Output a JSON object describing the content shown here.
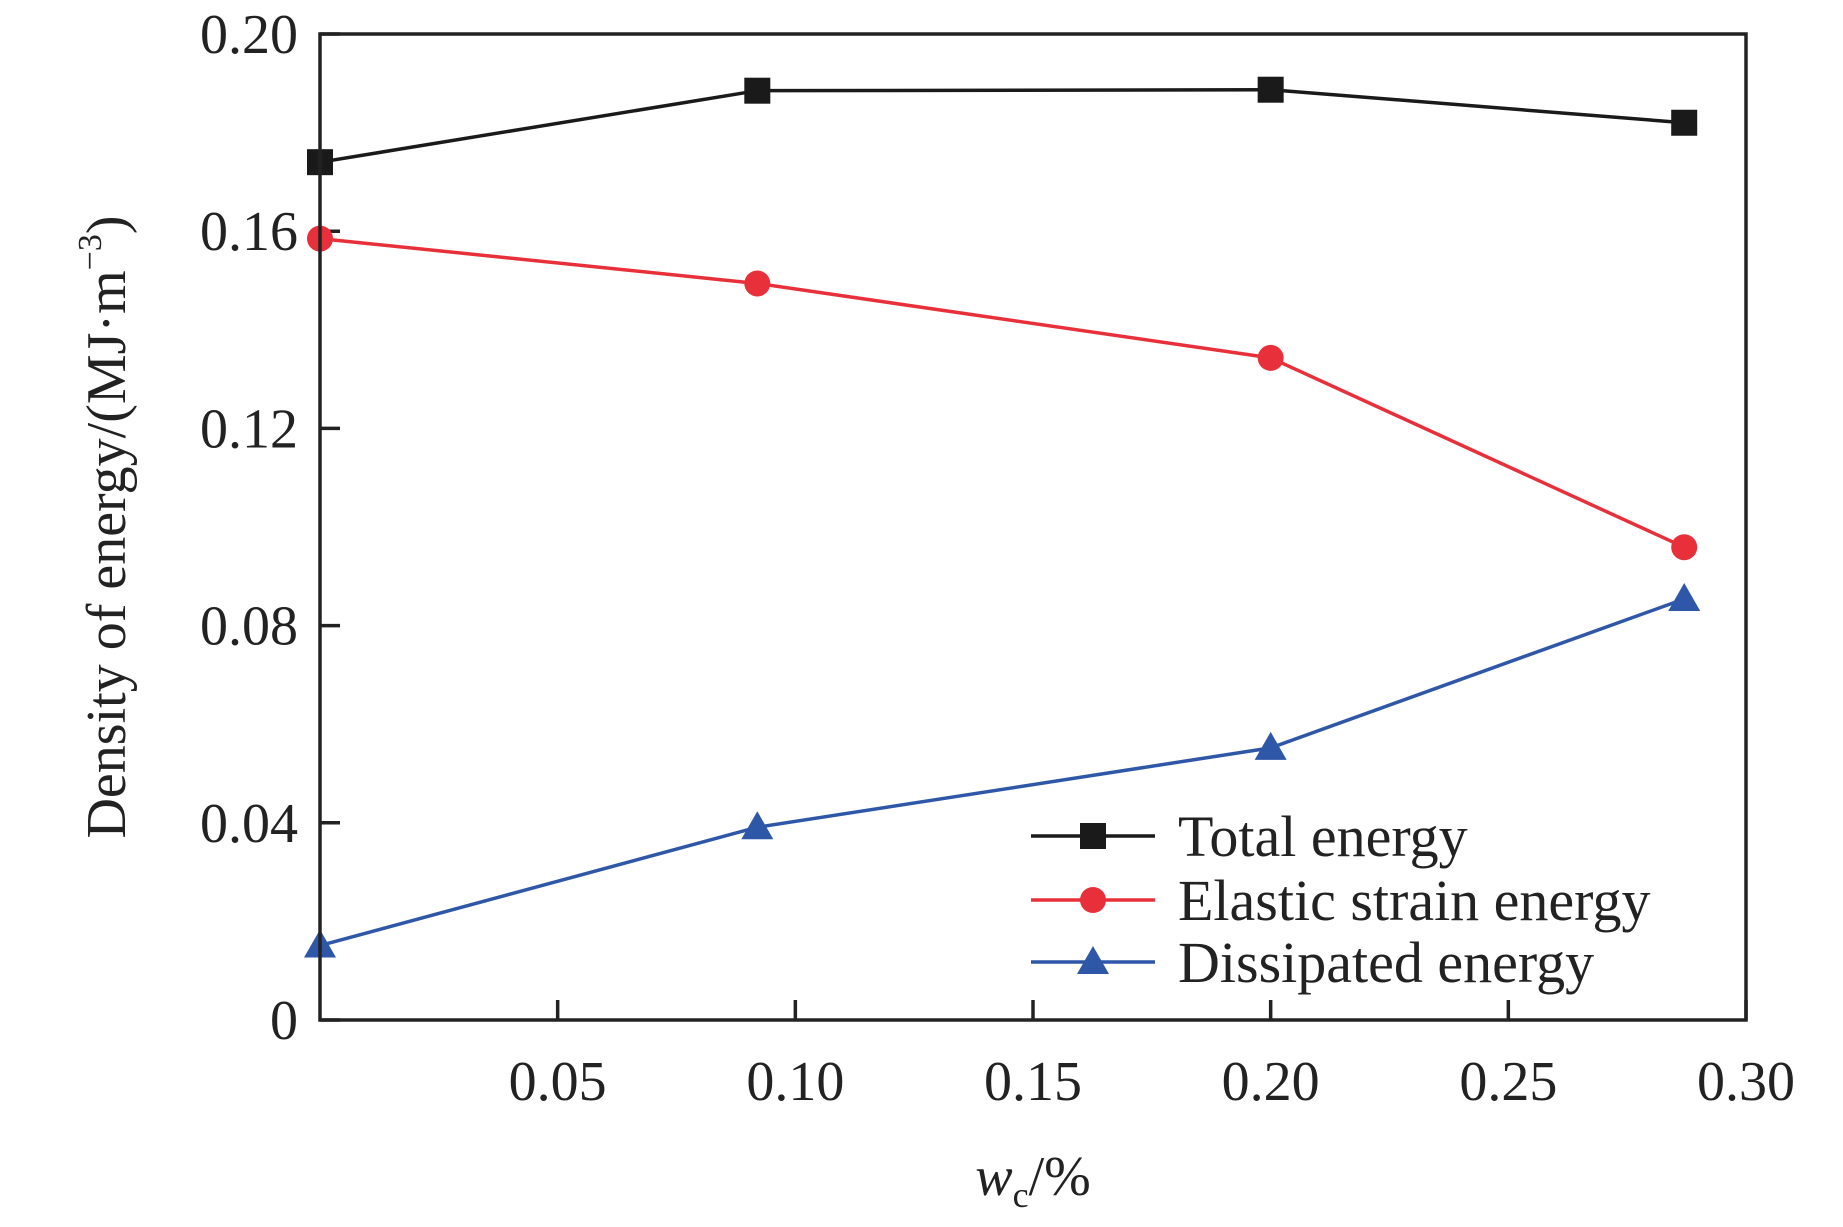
{
  "chart_data": {
    "type": "line",
    "xlabel_main": "w",
    "xlabel_sub": "c",
    "xlabel_unit": "/%",
    "ylabel": "Density of energy/(MJ·m",
    "ylabel_sup": "−3",
    "ylabel_close": ")",
    "xlim": [
      0,
      0.3
    ],
    "ylim": [
      0,
      0.2
    ],
    "xticks": [
      0.05,
      0.1,
      0.15,
      0.2,
      0.25,
      0.3
    ],
    "xtick_labels": [
      "0.05",
      "0.10",
      "0.15",
      "0.20",
      "0.25",
      "0.30"
    ],
    "yticks": [
      0,
      0.04,
      0.08,
      0.12,
      0.16,
      0.2
    ],
    "ytick_labels": [
      "0",
      "0.04",
      "0.08",
      "0.12",
      "0.16",
      "0.20"
    ],
    "grid": false,
    "legend_position": "bottom-right",
    "x": [
      0,
      0.092,
      0.2,
      0.287
    ],
    "series": [
      {
        "name": "Total energy",
        "values": [
          0.174,
          0.1885,
          0.1887,
          0.182
        ],
        "color": "#1a1a1a",
        "marker": "square"
      },
      {
        "name": "Elastic strain energy",
        "values": [
          0.1585,
          0.1494,
          0.1343,
          0.0959
        ],
        "color": "#e8303a",
        "marker": "circle"
      },
      {
        "name": "Dissipated energy",
        "values": [
          0.0151,
          0.0391,
          0.0552,
          0.0854
        ],
        "color": "#2f57a8",
        "marker": "triangle"
      }
    ]
  }
}
